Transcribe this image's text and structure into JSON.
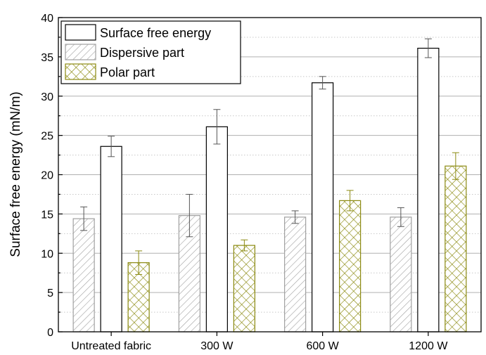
{
  "chart_data": {
    "type": "bar",
    "title": "",
    "xlabel": "",
    "ylabel": "Surface free energy (mN/m)",
    "ylim": [
      0,
      40
    ],
    "yticks": [
      "0",
      "5",
      "10",
      "15",
      "20",
      "25",
      "30",
      "35",
      "40"
    ],
    "categories": [
      "Untreated fabric",
      "300 W",
      "600 W",
      "1200 W"
    ],
    "grid": true,
    "legend_position": "top-left",
    "series": [
      {
        "name": "Dispersive part",
        "values": [
          14.4,
          14.8,
          14.6,
          14.6
        ],
        "errors": [
          1.5,
          2.7,
          0.8,
          1.2
        ],
        "fill": "#ffffff",
        "pattern": "diagonal-hatch",
        "color": "#a0a0a0"
      },
      {
        "name": "Surface free energy",
        "values": [
          23.6,
          26.1,
          31.7,
          36.1
        ],
        "errors": [
          1.3,
          2.2,
          0.8,
          1.2
        ],
        "fill": "#ffffff",
        "pattern": "none",
        "color": "#000000"
      },
      {
        "name": "Polar part",
        "values": [
          8.8,
          11.0,
          16.7,
          21.1
        ],
        "errors": [
          1.5,
          0.7,
          1.3,
          1.7
        ],
        "fill": "#ffffff",
        "pattern": "crosshatch",
        "color": "#8b8a10"
      }
    ],
    "legend_order": [
      "Surface free energy",
      "Dispersive part",
      "Polar part"
    ]
  }
}
